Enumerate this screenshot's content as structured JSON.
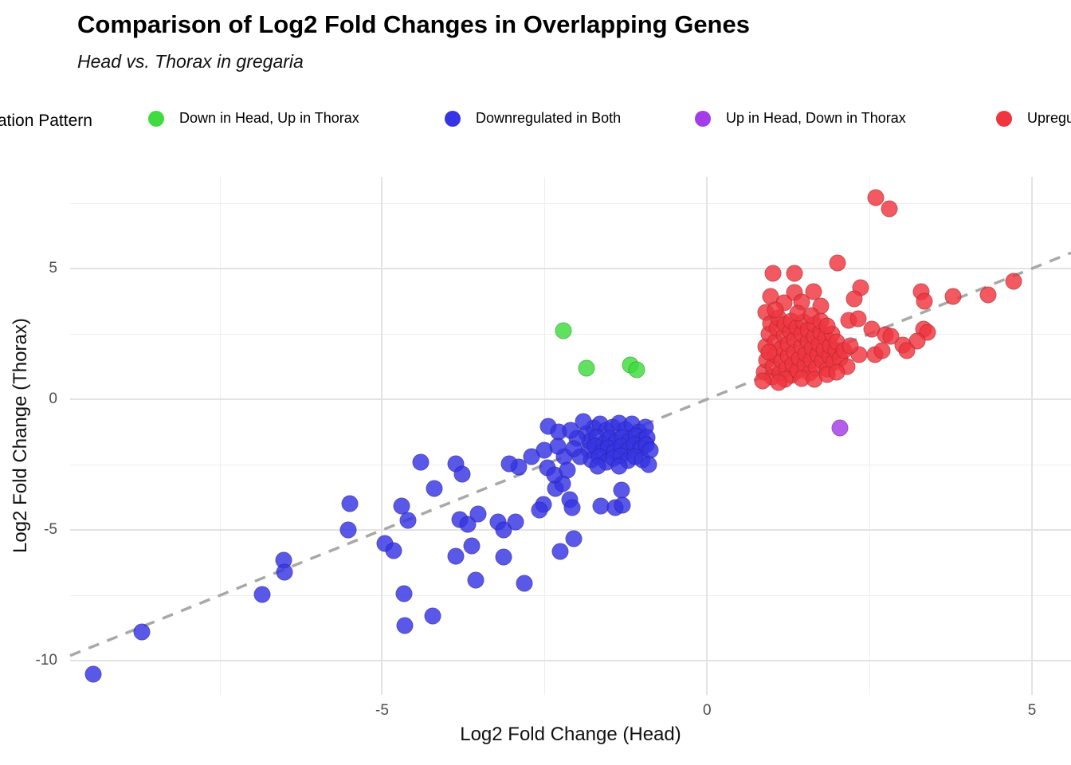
{
  "header": {
    "title": "Comparison of Log2 Fold Changes in Overlapping Genes",
    "subtitle": "Head vs. Thorax in gregaria"
  },
  "legend": {
    "title": "Regulation Pattern",
    "items": [
      {
        "label": "Down in Head, Up in Thorax",
        "color": "#3edc3e"
      },
      {
        "label": "Downregulated in Both",
        "color": "#3634e4"
      },
      {
        "label": "Up in Head, Down in Thorax",
        "color": "#a43ce8"
      },
      {
        "label": "Upregulated in Both",
        "color": "#f0353f"
      }
    ]
  },
  "chart_data": {
    "type": "scatter",
    "title": "Comparison of Log2 Fold Changes in Overlapping Genes",
    "subtitle": "Head vs. Thorax in gregaria",
    "xlabel": "Log2 Fold Change (Head)",
    "ylabel": "Log2 Fold Change (Thorax)",
    "xlim": [
      -9.8,
      5.6
    ],
    "ylim": [
      -11.3,
      8.5
    ],
    "x_ticks_major": [
      -5,
      0,
      5
    ],
    "x_ticks_minor": [
      -7.5,
      -2.5,
      2.5
    ],
    "y_ticks_major": [
      5,
      0,
      -5,
      -10
    ],
    "y_ticks_minor": [
      7.5,
      2.5,
      -2.5,
      -7.5
    ],
    "grid": true,
    "legend_position": "top",
    "reference_line": {
      "type": "identity",
      "slope": 1,
      "intercept": 0,
      "style": "dashed",
      "color": "#a8a8a8"
    },
    "series": [
      {
        "name": "Down in Head, Up in Thorax",
        "color": "#3edc3e",
        "points": [
          [
            -2.21,
            2.62
          ],
          [
            -1.85,
            1.2
          ],
          [
            -1.18,
            1.32
          ],
          [
            -1.08,
            1.12
          ]
        ]
      },
      {
        "name": "Up in Head, Down in Thorax",
        "color": "#a43ce8",
        "points": [
          [
            2.05,
            -1.1
          ]
        ]
      },
      {
        "name": "Downregulated in Both",
        "color": "#3634e4",
        "points": [
          [
            -9.45,
            -10.5
          ],
          [
            -8.7,
            -8.9
          ],
          [
            -6.85,
            -7.45
          ],
          [
            -6.52,
            -6.15
          ],
          [
            -6.5,
            -6.6
          ],
          [
            -5.5,
            -4.0
          ],
          [
            -5.52,
            -5.0
          ],
          [
            -4.96,
            -5.5
          ],
          [
            -4.82,
            -5.8
          ],
          [
            -4.7,
            -4.08
          ],
          [
            -4.6,
            -4.62
          ],
          [
            -4.66,
            -7.44
          ],
          [
            -4.65,
            -8.66
          ],
          [
            -4.22,
            -8.28
          ],
          [
            -4.2,
            -3.42
          ],
          [
            -4.4,
            -2.42
          ],
          [
            -3.87,
            -2.47
          ],
          [
            -3.77,
            -2.87
          ],
          [
            -3.8,
            -4.6
          ],
          [
            -3.68,
            -4.78
          ],
          [
            -3.62,
            -5.6
          ],
          [
            -3.87,
            -6.0
          ],
          [
            -3.56,
            -6.9
          ],
          [
            -3.52,
            -4.38
          ],
          [
            -3.21,
            -4.7
          ],
          [
            -3.13,
            -5.0
          ],
          [
            -3.13,
            -6.02
          ],
          [
            -2.94,
            -4.7
          ],
          [
            -2.81,
            -7.04
          ],
          [
            -2.52,
            -4.02
          ],
          [
            -2.58,
            -4.24
          ],
          [
            -2.26,
            -5.82
          ],
          [
            -2.05,
            -5.33
          ],
          [
            -2.11,
            -3.84
          ],
          [
            -2.07,
            -4.15
          ],
          [
            -2.33,
            -3.41
          ],
          [
            -1.64,
            -4.09
          ],
          [
            -1.41,
            -4.15
          ],
          [
            -1.31,
            -3.48
          ],
          [
            -1.3,
            -4.05
          ],
          [
            -2.44,
            -1.04
          ],
          [
            -2.28,
            -1.25
          ],
          [
            -2.5,
            -1.95
          ],
          [
            -2.9,
            -2.6
          ],
          [
            -3.05,
            -2.48
          ],
          [
            -2.22,
            -3.23
          ],
          [
            -2.7,
            -2.2
          ],
          [
            -2.45,
            -2.62
          ],
          [
            -2.35,
            -2.9
          ],
          [
            -2.2,
            -2.2
          ],
          [
            -2.3,
            -1.8
          ],
          [
            -2.15,
            -2.7
          ],
          [
            -1.85,
            -1.3
          ],
          [
            -1.75,
            -1.1
          ],
          [
            -1.65,
            -0.95
          ],
          [
            -1.55,
            -1.2
          ],
          [
            -1.45,
            -1.05
          ],
          [
            -1.35,
            -0.9
          ],
          [
            -1.25,
            -1.15
          ],
          [
            -1.15,
            -0.95
          ],
          [
            -1.05,
            -1.25
          ],
          [
            -0.95,
            -1.05
          ],
          [
            -1.8,
            -1.6
          ],
          [
            -1.7,
            -1.45
          ],
          [
            -1.6,
            -1.7
          ],
          [
            -1.5,
            -1.5
          ],
          [
            -1.4,
            -1.65
          ],
          [
            -1.3,
            -1.45
          ],
          [
            -1.2,
            -1.6
          ],
          [
            -1.1,
            -1.4
          ],
          [
            -1.0,
            -1.55
          ],
          [
            -0.92,
            -1.45
          ],
          [
            -1.82,
            -1.95
          ],
          [
            -1.72,
            -1.8
          ],
          [
            -1.62,
            -2.05
          ],
          [
            -1.52,
            -1.85
          ],
          [
            -1.42,
            -2.0
          ],
          [
            -1.32,
            -1.8
          ],
          [
            -1.22,
            -1.95
          ],
          [
            -1.12,
            -1.75
          ],
          [
            -1.02,
            -1.9
          ],
          [
            -0.94,
            -1.75
          ],
          [
            -1.78,
            -2.3
          ],
          [
            -1.66,
            -2.2
          ],
          [
            -1.55,
            -2.4
          ],
          [
            -1.44,
            -2.25
          ],
          [
            -1.33,
            -2.15
          ],
          [
            -1.22,
            -2.35
          ],
          [
            -1.11,
            -2.2
          ],
          [
            -1.0,
            -2.3
          ],
          [
            -1.68,
            -2.55
          ],
          [
            -1.35,
            -2.55
          ],
          [
            -1.9,
            -0.85
          ],
          [
            -2.0,
            -1.5
          ],
          [
            -1.95,
            -2.2
          ],
          [
            -2.05,
            -1.9
          ],
          [
            -2.1,
            -1.2
          ],
          [
            -0.88,
            -1.95
          ],
          [
            -0.9,
            -2.5
          ]
        ]
      },
      {
        "name": "Upregulated in Both",
        "color": "#f0353f",
        "points": [
          [
            2.59,
            7.7
          ],
          [
            2.8,
            7.28
          ],
          [
            2.01,
            5.22
          ],
          [
            1.01,
            4.82
          ],
          [
            1.35,
            4.8
          ],
          [
            4.72,
            4.51
          ],
          [
            4.33,
            3.99
          ],
          [
            3.78,
            3.93
          ],
          [
            3.29,
            4.12
          ],
          [
            3.35,
            3.75
          ],
          [
            2.36,
            4.28
          ],
          [
            2.27,
            3.84
          ],
          [
            0.98,
            3.93
          ],
          [
            1.18,
            3.69
          ],
          [
            1.35,
            4.08
          ],
          [
            2.18,
            3.02
          ],
          [
            2.33,
            3.08
          ],
          [
            2.53,
            2.68
          ],
          [
            2.74,
            2.47
          ],
          [
            2.83,
            2.41
          ],
          [
            3.33,
            2.68
          ],
          [
            3.39,
            2.56
          ],
          [
            3.23,
            2.23
          ],
          [
            3.01,
            2.07
          ],
          [
            3.07,
            1.86
          ],
          [
            2.34,
            1.71
          ],
          [
            2.58,
            1.71
          ],
          [
            2.7,
            1.86
          ],
          [
            1.64,
            4.1
          ],
          [
            1.45,
            3.72
          ],
          [
            1.75,
            3.58
          ],
          [
            0.9,
            3.32
          ],
          [
            0.88,
            1.05
          ],
          [
            0.92,
            1.5
          ],
          [
            0.9,
            2.0
          ],
          [
            0.95,
            2.5
          ],
          [
            0.98,
            2.9
          ],
          [
            1.0,
            0.85
          ],
          [
            1.02,
            1.25
          ],
          [
            1.05,
            1.7
          ],
          [
            1.05,
            2.2
          ],
          [
            1.08,
            2.7
          ],
          [
            1.1,
            3.1
          ],
          [
            1.12,
            1.0
          ],
          [
            1.15,
            1.45
          ],
          [
            1.15,
            1.95
          ],
          [
            1.18,
            2.45
          ],
          [
            1.2,
            2.85
          ],
          [
            1.22,
            1.2
          ],
          [
            1.25,
            1.65
          ],
          [
            1.25,
            2.1
          ],
          [
            1.28,
            2.6
          ],
          [
            1.3,
            3.0
          ],
          [
            1.3,
            0.9
          ],
          [
            1.32,
            1.35
          ],
          [
            1.35,
            1.8
          ],
          [
            1.35,
            2.3
          ],
          [
            1.38,
            2.75
          ],
          [
            1.4,
            1.1
          ],
          [
            1.42,
            1.55
          ],
          [
            1.45,
            2.0
          ],
          [
            1.45,
            2.5
          ],
          [
            1.48,
            2.95
          ],
          [
            1.5,
            1.3
          ],
          [
            1.52,
            1.75
          ],
          [
            1.55,
            2.2
          ],
          [
            1.55,
            2.65
          ],
          [
            1.58,
            1.0
          ],
          [
            1.6,
            1.5
          ],
          [
            1.62,
            1.95
          ],
          [
            1.65,
            2.4
          ],
          [
            1.65,
            2.85
          ],
          [
            1.68,
            1.2
          ],
          [
            1.7,
            1.7
          ],
          [
            1.72,
            2.1
          ],
          [
            1.75,
            2.55
          ],
          [
            1.78,
            1.45
          ],
          [
            1.8,
            1.9
          ],
          [
            1.82,
            2.35
          ],
          [
            1.85,
            1.15
          ],
          [
            1.88,
            1.65
          ],
          [
            1.9,
            2.05
          ],
          [
            1.92,
            2.5
          ],
          [
            1.95,
            1.4
          ],
          [
            1.98,
            1.85
          ],
          [
            0.95,
            1.8
          ],
          [
            1.4,
            3.3
          ],
          [
            1.6,
            3.2
          ],
          [
            1.75,
            3.0
          ],
          [
            1.85,
            2.8
          ],
          [
            1.05,
            3.4
          ],
          [
            2.0,
            2.2
          ],
          [
            2.05,
            1.55
          ],
          [
            2.1,
            1.85
          ],
          [
            2.15,
            1.25
          ],
          [
            2.2,
            2.05
          ],
          [
            1.2,
            0.75
          ],
          [
            1.45,
            0.8
          ],
          [
            1.65,
            0.75
          ],
          [
            1.85,
            0.95
          ],
          [
            2.0,
            1.05
          ],
          [
            0.86,
            0.7
          ],
          [
            1.1,
            0.65
          ]
        ]
      }
    ]
  }
}
